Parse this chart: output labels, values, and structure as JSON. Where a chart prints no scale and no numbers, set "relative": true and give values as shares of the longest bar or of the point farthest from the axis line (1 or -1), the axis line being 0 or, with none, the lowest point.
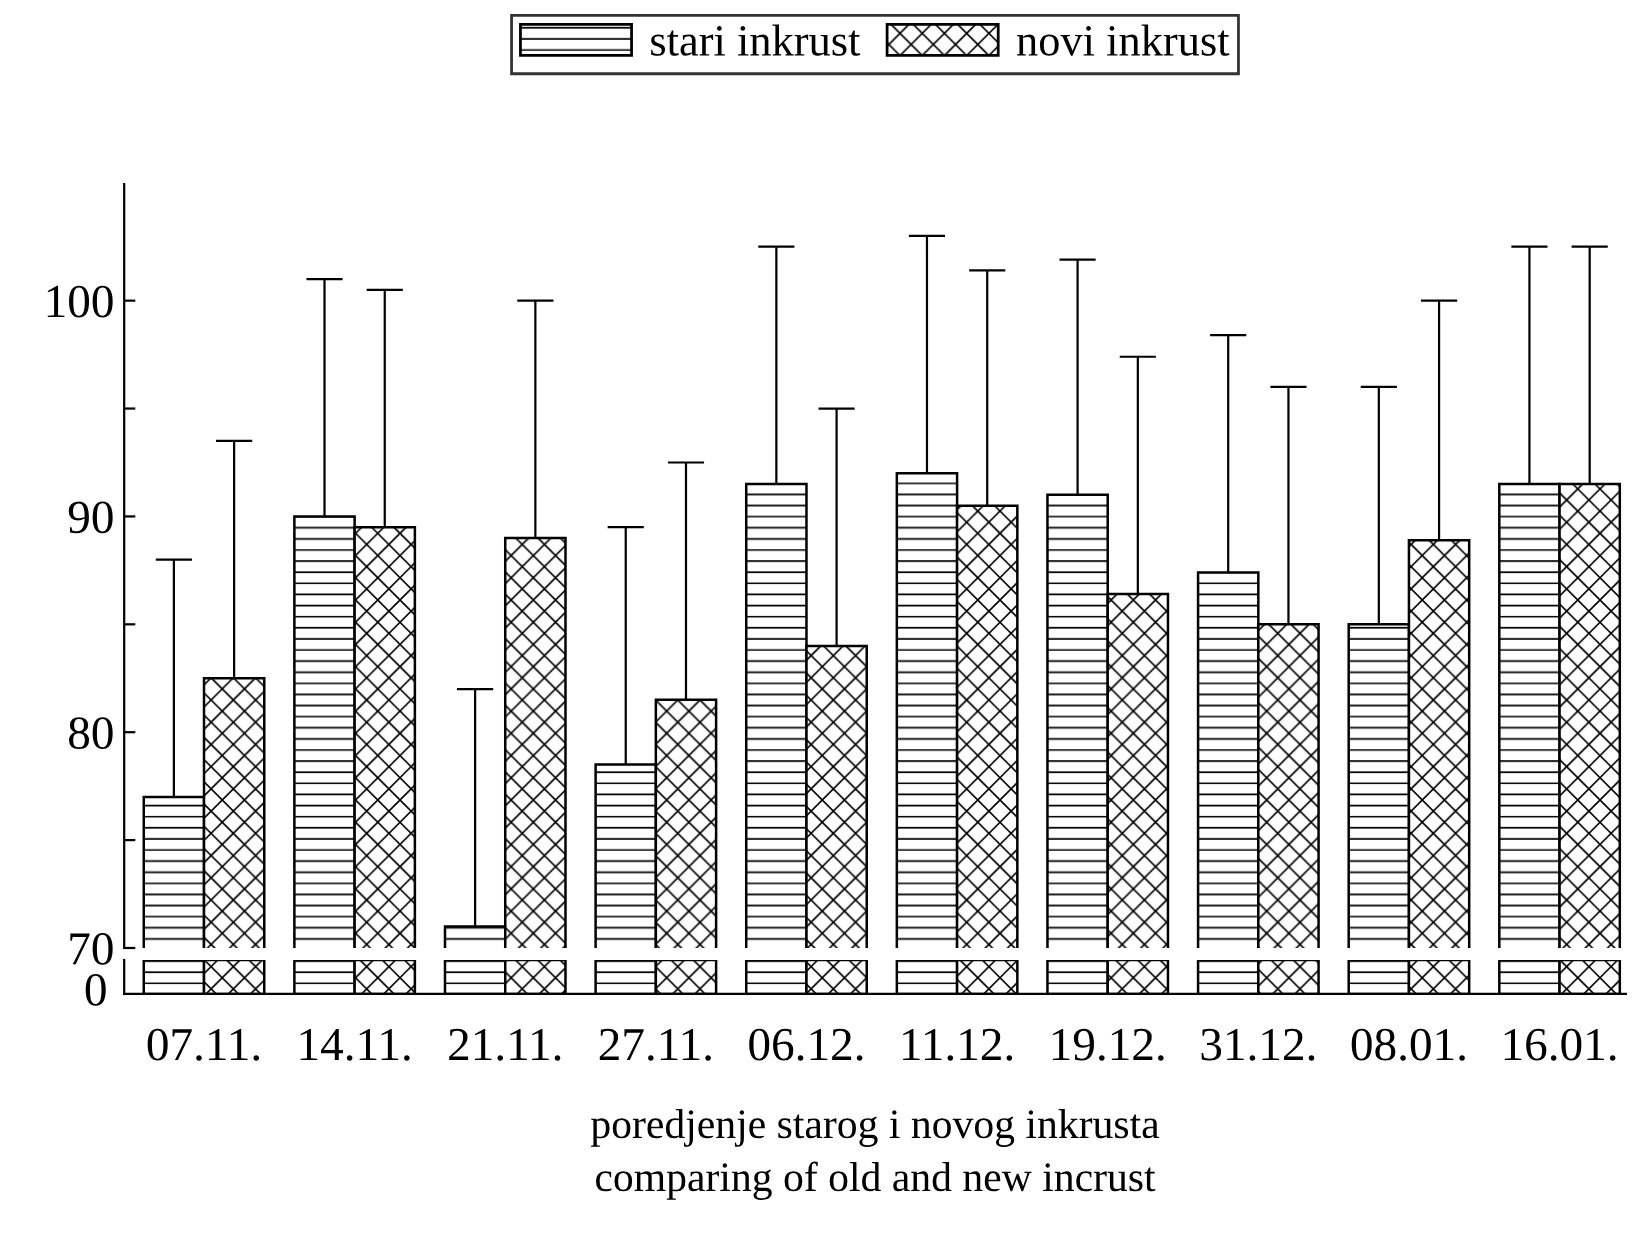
{
  "chart_data": [
    {
      "type": "bar",
      "categories": [
        "07.11.",
        "14.11.",
        "21.11.",
        "27.11.",
        "06.12.",
        "11.12.",
        "19.12.",
        "31.12.",
        "08.01.",
        "16.01."
      ],
      "series": [
        {
          "name": "stari inkrust",
          "color": "#000000",
          "values": [
            77,
            90,
            71,
            78.5,
            91.5,
            92,
            91,
            87.4,
            85,
            91.5
          ],
          "errors": [
            [
              77,
              88
            ],
            [
              90,
              101
            ],
            [
              71,
              82
            ],
            [
              78.5,
              89.5
            ],
            [
              91.5,
              102.5
            ],
            [
              92,
              103
            ],
            [
              91,
              101.9
            ],
            [
              87.4,
              98.4
            ],
            [
              85,
              96
            ],
            [
              91.5,
              102.5
            ]
          ]
        },
        {
          "name": "novi inkrust",
          "color": "#000000",
          "values": [
            82.5,
            89.5,
            89,
            81.5,
            84,
            90.5,
            86.4,
            85,
            88.9,
            91.5
          ],
          "errors": [
            [
              82.5,
              93.5
            ],
            [
              89.5,
              100.5
            ],
            [
              89,
              100
            ],
            [
              81.5,
              92.5
            ],
            [
              84,
              95
            ],
            [
              90.5,
              101.4
            ],
            [
              86.4,
              97.4
            ],
            [
              85,
              96
            ],
            [
              88.9,
              100
            ],
            [
              91.5,
              102.5
            ]
          ]
        }
      ],
      "ylim": [
        70,
        105.4
      ],
      "yticks": [
        70,
        {
          "value": 75,
          "label": null
        },
        80,
        {
          "value": 85,
          "label": null
        },
        90,
        {
          "value": 95,
          "label": null
        },
        100
      ],
      "legend": "top",
      "tick_labels": "y",
      "grid": false
    },
    {
      "type": "bar",
      "relative": true,
      "categories": [
        "07.11.",
        "14.11.",
        "21.11.",
        "27.11.",
        "06.12.",
        "11.12.",
        "19.12.",
        "31.12.",
        "08.01.",
        "16.01."
      ],
      "series": [
        {
          "color": "#000000",
          "values": [
            1,
            1,
            1,
            1,
            1,
            1,
            1,
            1,
            1,
            1
          ]
        },
        {
          "color": "#000000",
          "values": [
            1,
            1,
            1,
            1,
            1,
            1,
            1,
            1,
            1,
            1
          ]
        }
      ],
      "annotations": [
        "0"
      ],
      "xlabel": "poredjenje starog i novog inkrusta\ncomparing of old and new incrust",
      "grid": false
    }
  ]
}
